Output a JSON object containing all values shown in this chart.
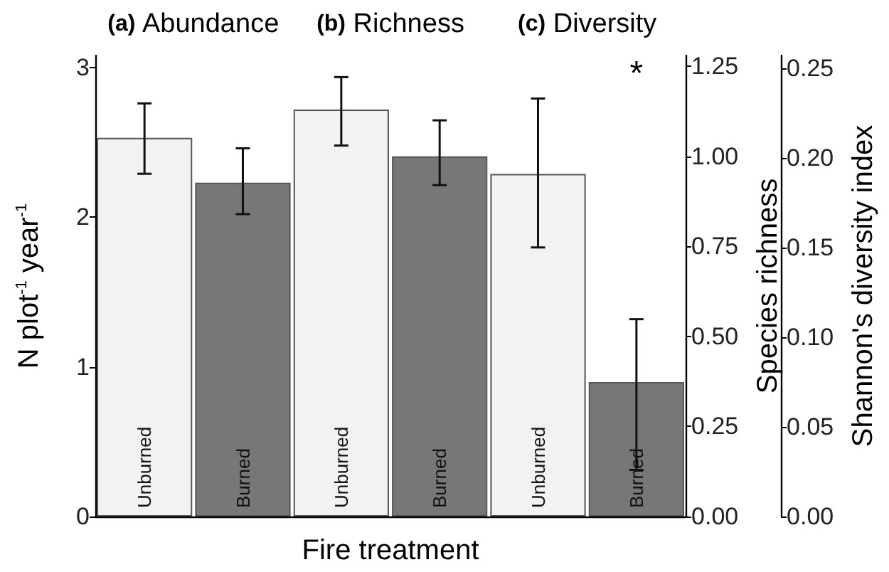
{
  "chart_data": {
    "type": "bar",
    "xlabel": "Fire treatment",
    "ylabel": "N plot$^{-1}$ year$^{-1}$",
    "y2label": "Species richness",
    "y3label": "Shannon's diversity index",
    "categories": [
      "Unburned",
      "Burned",
      "Unburned",
      "Burned",
      "Unburned",
      "Burned"
    ],
    "series": [
      {
        "axis": "y",
        "colors": [
          "#f2f2f2",
          "#777777",
          null,
          null,
          null,
          null
        ],
        "values": [
          2.53,
          2.23,
          null,
          null,
          null,
          null
        ],
        "errors": [
          [
            2.29,
            2.76
          ],
          [
            2.02,
            2.46
          ],
          null,
          null,
          null,
          null
        ]
      },
      {
        "axis": "y2",
        "colors": [
          null,
          null,
          "#f2f2f2",
          "#777777",
          null,
          null
        ],
        "values": [
          null,
          null,
          1.13,
          1.0,
          null,
          null
        ],
        "errors": [
          null,
          null,
          [
            1.03,
            1.22
          ],
          [
            0.92,
            1.1
          ],
          null,
          null
        ]
      },
      {
        "axis": "y3",
        "colors": [
          null,
          null,
          null,
          null,
          "#f2f2f2",
          "#777777"
        ],
        "values": [
          null,
          null,
          null,
          null,
          0.191,
          0.075
        ],
        "errors": [
          null,
          null,
          null,
          null,
          [
            0.15,
            0.233
          ],
          [
            0.026,
            0.11
          ]
        ]
      }
    ],
    "ylim": [
      0,
      3.08
    ],
    "yticks": [
      0,
      1,
      2,
      3
    ],
    "y2lim": [
      0,
      1.28
    ],
    "y2ticks": [
      {
        "value": 0,
        "label": "0.00"
      },
      {
        "value": 0.25,
        "label": "0.25"
      },
      {
        "value": 0.5,
        "label": "0.50"
      },
      {
        "value": 0.75,
        "label": "0.75"
      },
      {
        "value": 1,
        "label": "1.00"
      },
      {
        "value": 1.25,
        "label": "1.25"
      }
    ],
    "y3lim": [
      0,
      0.257
    ],
    "y3ticks": [
      {
        "value": 0,
        "label": "0.00"
      },
      {
        "value": 0.05,
        "label": "0.05"
      },
      {
        "value": 0.1,
        "label": "0.10"
      },
      {
        "value": 0.15,
        "label": "0.15"
      },
      {
        "value": 0.2,
        "label": "0.20"
      },
      {
        "value": 0.25,
        "label": "0.25"
      }
    ],
    "annotations": [
      "(a) Abundance",
      "(b) Richness",
      "(c) Diversity",
      "*"
    ],
    "grid": false
  }
}
